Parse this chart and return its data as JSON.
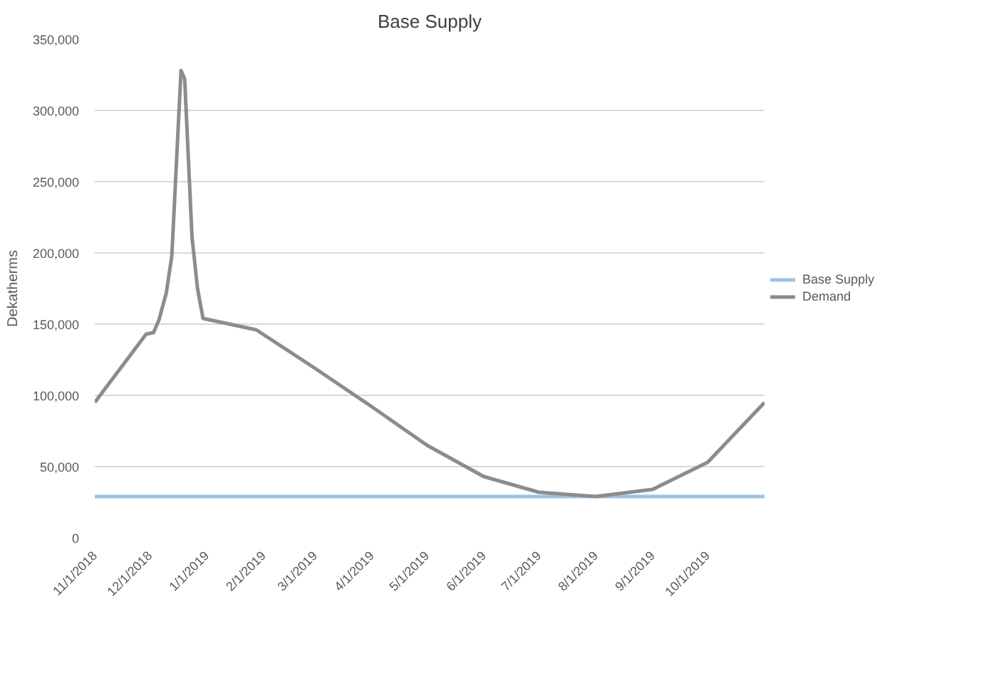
{
  "chart_data": {
    "type": "line",
    "title": "Base Supply",
    "ylabel": "Dekatherms",
    "x": [
      "2018-11-01",
      "2018-11-29",
      "2018-12-03",
      "2018-12-06",
      "2018-12-10",
      "2018-12-13",
      "2018-12-18",
      "2018-12-20",
      "2018-12-24",
      "2018-12-27",
      "2018-12-30",
      "2019-01-28",
      "2019-03-01",
      "2019-04-01",
      "2019-05-01",
      "2019-06-01",
      "2019-07-01",
      "2019-08-01",
      "2019-09-01",
      "2019-10-01",
      "2019-11-01"
    ],
    "series": [
      {
        "name": "Base Supply",
        "color": "#9dc3e6",
        "values": [
          29000,
          29000,
          29000,
          29000,
          29000,
          29000,
          29000,
          29000,
          29000,
          29000,
          29000,
          29000,
          29000,
          29000,
          29000,
          29000,
          29000,
          29000,
          29000,
          29000,
          29000
        ]
      },
      {
        "name": "Demand",
        "color": "#8c8c8c",
        "values": [
          95000,
          143000,
          144000,
          153000,
          172000,
          198000,
          328000,
          322000,
          211000,
          175000,
          154000,
          146000,
          119000,
          92000,
          65000,
          43000,
          32000,
          29000,
          34000,
          53000,
          95000
        ]
      }
    ],
    "xlim": [
      "2018-11-01",
      "2019-11-01"
    ],
    "xticks": [
      {
        "value": "2018-11-01",
        "label": "11/1/2018"
      },
      {
        "value": "2018-12-01",
        "label": "12/1/2018"
      },
      {
        "value": "2019-01-01",
        "label": "1/1/2019"
      },
      {
        "value": "2019-02-01",
        "label": "2/1/2019"
      },
      {
        "value": "2019-03-01",
        "label": "3/1/2019"
      },
      {
        "value": "2019-04-01",
        "label": "4/1/2019"
      },
      {
        "value": "2019-05-01",
        "label": "5/1/2019"
      },
      {
        "value": "2019-06-01",
        "label": "6/1/2019"
      },
      {
        "value": "2019-07-01",
        "label": "7/1/2019"
      },
      {
        "value": "2019-08-01",
        "label": "8/1/2019"
      },
      {
        "value": "2019-09-01",
        "label": "9/1/2019"
      },
      {
        "value": "2019-10-01",
        "label": "10/1/2019"
      }
    ],
    "ylim": [
      0,
      350000
    ],
    "yticks": [
      {
        "value": 0,
        "label": "0"
      },
      {
        "value": 50000,
        "label": "50,000"
      },
      {
        "value": 100000,
        "label": "100,000"
      },
      {
        "value": 150000,
        "label": "150,000"
      },
      {
        "value": 200000,
        "label": "200,000"
      },
      {
        "value": 250000,
        "label": "250,000"
      },
      {
        "value": 300000,
        "label": "300,000"
      },
      {
        "value": 350000,
        "label": "350,000"
      }
    ],
    "grid": "y",
    "legend": "right",
    "marker": "none",
    "line_style": "solid"
  }
}
